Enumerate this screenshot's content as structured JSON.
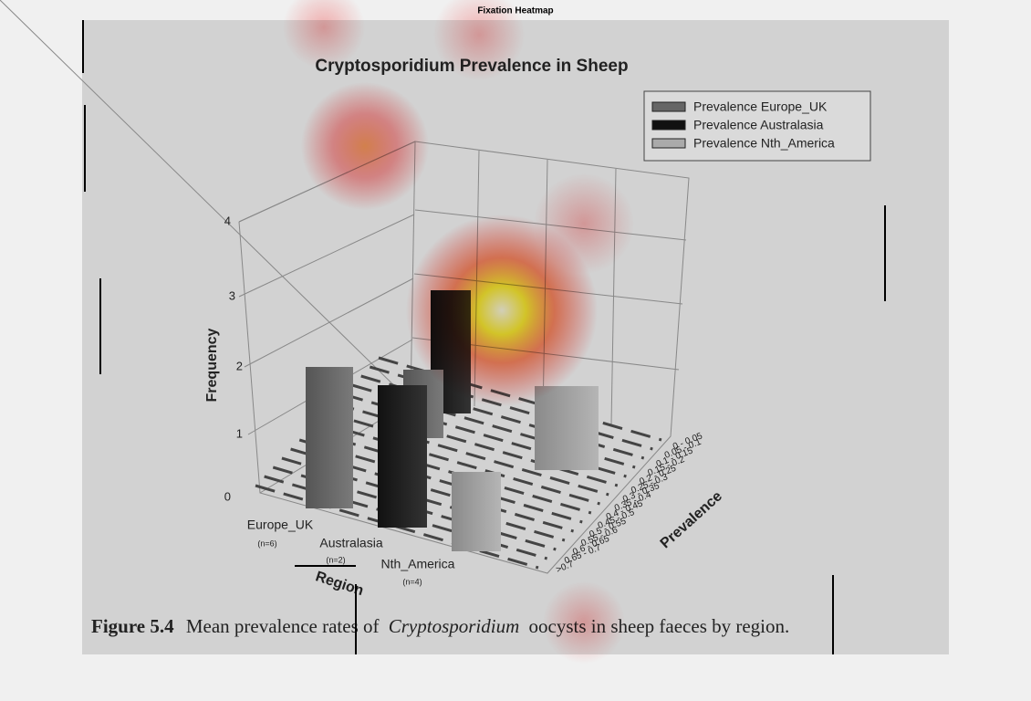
{
  "heading": "Fixation Heatmap",
  "figure": {
    "title": "Cryptosporidium Prevalence in Sheep",
    "legend": [
      "Prevalence Europe_UK",
      "Prevalence Australasia",
      "Prevalence Nth_America"
    ],
    "y_axis": {
      "label": "Frequency",
      "ticks": [
        "0",
        "1",
        "2",
        "3",
        "4"
      ]
    },
    "x_axis": {
      "label": "Region",
      "categories": [
        {
          "name": "Europe_UK",
          "n": "(n=6)"
        },
        {
          "name": "Australasia",
          "n": "(n=2)"
        },
        {
          "name": "Nth_America",
          "n": "(n=4)"
        }
      ]
    },
    "depth_axis": {
      "label": "Prevalence",
      "bins": [
        "0 - 0.05",
        "0.05 - 0.1",
        "0.1 - 0.15",
        "0.15 - 0.2",
        "0.2 - 0.25",
        "0.25 - 0.3",
        "0.3 - 0.35",
        "0.35 - 0.4",
        "0.4 - 0.45",
        "0.45 - 0.5",
        "0.5 - 0.55",
        "0.55 - 0.6",
        "0.6 - 0.65",
        "0.65 - 0.7",
        ">0.7"
      ]
    },
    "caption": {
      "number": "Figure 5.4",
      "text_before": "Mean prevalence rates of",
      "italic": "Cryptosporidium",
      "text_after": "oocysts in sheep faeces by region."
    }
  }
}
